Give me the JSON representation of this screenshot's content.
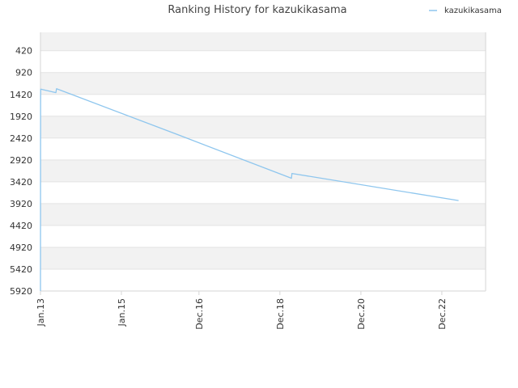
{
  "chart_data": {
    "type": "line",
    "title": "Ranking History for kazukikasama",
    "xlabel": "",
    "ylabel": "",
    "y_reversed": true,
    "ylim": [
      5920,
      0
    ],
    "y_ticks": [
      420,
      920,
      1420,
      1920,
      2420,
      2920,
      3420,
      3920,
      4420,
      4920,
      5420,
      5920
    ],
    "x_ticks": [
      "Jan.13",
      "Jan.15",
      "Dec.16",
      "Dec.18",
      "Dec.20",
      "Dec.22"
    ],
    "xlim": [
      "2013-01-01",
      "2023-12-31"
    ],
    "grid": true,
    "legend_position": "top-right",
    "colors": {
      "series": "#8ec6ee",
      "band": "#f2f2f2",
      "grid": "#e3e3e3",
      "axis": "#d6d6d6"
    },
    "series": [
      {
        "name": "kazukikasama",
        "points": [
          {
            "x": "2013-01-01",
            "y": 5920
          },
          {
            "x": "2013-01-02",
            "y": 1650
          },
          {
            "x": "2013-01-03",
            "y": 1300
          },
          {
            "x": "2013-05-20",
            "y": 1380
          },
          {
            "x": "2013-05-26",
            "y": 1290
          },
          {
            "x": "2016-06-01",
            "y": 2350
          },
          {
            "x": "2019-03-15",
            "y": 3340
          },
          {
            "x": "2019-03-20",
            "y": 3230
          },
          {
            "x": "2023-05-01",
            "y": 3850
          }
        ]
      }
    ]
  }
}
